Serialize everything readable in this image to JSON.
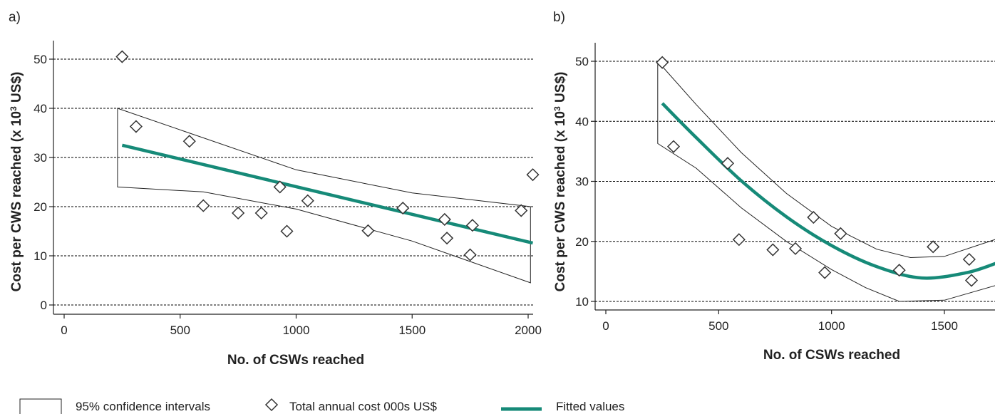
{
  "colors": {
    "fit": "#168a78",
    "grid": "#000000",
    "band": "#222222",
    "marker": "#333333"
  },
  "legend": {
    "band_label": "95% confidence intervals",
    "marker_label": "Total annual cost 000s US$",
    "fit_label": "Fitted values"
  },
  "chart_data": [
    {
      "panel": "a)",
      "type": "scatter",
      "xlabel": "No. of CSWs reached",
      "ylabel": "Cost per CWS reached (x 10³ US$)",
      "xlim": [
        -40,
        2030
      ],
      "ylim": [
        -1,
        52
      ],
      "xticks": [
        0,
        500,
        1000,
        1500,
        2000
      ],
      "yticks": [
        0,
        10,
        20,
        30,
        40,
        50
      ],
      "grid": "horizontal dashed",
      "points": [
        {
          "x": 250,
          "y": 50.5
        },
        {
          "x": 310,
          "y": 36.3
        },
        {
          "x": 540,
          "y": 33.3
        },
        {
          "x": 600,
          "y": 20.2
        },
        {
          "x": 750,
          "y": 18.7
        },
        {
          "x": 850,
          "y": 18.7
        },
        {
          "x": 930,
          "y": 24.0
        },
        {
          "x": 960,
          "y": 15.0
        },
        {
          "x": 1050,
          "y": 21.2
        },
        {
          "x": 1310,
          "y": 15.1
        },
        {
          "x": 1460,
          "y": 19.7
        },
        {
          "x": 1640,
          "y": 17.4
        },
        {
          "x": 1650,
          "y": 13.6
        },
        {
          "x": 1750,
          "y": 10.2
        },
        {
          "x": 1760,
          "y": 16.2
        },
        {
          "x": 1970,
          "y": 19.2
        },
        {
          "x": 2020,
          "y": 26.5
        }
      ],
      "fitted": [
        {
          "x": 250,
          "y": 32.5
        },
        {
          "x": 2020,
          "y": 12.6
        }
      ],
      "ci_upper": [
        {
          "x": 230,
          "y": 40.0
        },
        {
          "x": 1000,
          "y": 27.5
        },
        {
          "x": 1500,
          "y": 22.8
        },
        {
          "x": 2010,
          "y": 20.0
        }
      ],
      "ci_lower": [
        {
          "x": 230,
          "y": 24.0
        },
        {
          "x": 600,
          "y": 23.0
        },
        {
          "x": 1000,
          "y": 19.5
        },
        {
          "x": 1500,
          "y": 13.0
        },
        {
          "x": 2010,
          "y": 4.5
        }
      ]
    },
    {
      "panel": "b)",
      "type": "scatter",
      "xlabel": "No. of CSWs reached",
      "ylabel": "Cost per CWS reached (x 10³ US$)",
      "xlim": [
        -40,
        1740
      ],
      "ylim": [
        9,
        53
      ],
      "xticks": [
        0,
        500,
        1000,
        1500
      ],
      "yticks": [
        10,
        20,
        30,
        40,
        50
      ],
      "grid": "horizontal dashed",
      "points": [
        {
          "x": 250,
          "y": 49.8
        },
        {
          "x": 300,
          "y": 35.8
        },
        {
          "x": 540,
          "y": 33.0
        },
        {
          "x": 590,
          "y": 20.3
        },
        {
          "x": 740,
          "y": 18.6
        },
        {
          "x": 840,
          "y": 18.8
        },
        {
          "x": 920,
          "y": 24.0
        },
        {
          "x": 970,
          "y": 14.8
        },
        {
          "x": 1040,
          "y": 21.3
        },
        {
          "x": 1300,
          "y": 15.2
        },
        {
          "x": 1450,
          "y": 19.1
        },
        {
          "x": 1610,
          "y": 17.0
        },
        {
          "x": 1620,
          "y": 13.5
        }
      ],
      "fitted": [
        {
          "x": 250,
          "y": 43.0
        },
        {
          "x": 400,
          "y": 37.3
        },
        {
          "x": 600,
          "y": 30.1
        },
        {
          "x": 800,
          "y": 24.1
        },
        {
          "x": 1000,
          "y": 19.3
        },
        {
          "x": 1200,
          "y": 15.8
        },
        {
          "x": 1400,
          "y": 13.9
        },
        {
          "x": 1600,
          "y": 14.8
        },
        {
          "x": 1740,
          "y": 16.5
        }
      ],
      "ci_upper": [
        {
          "x": 230,
          "y": 50.0
        },
        {
          "x": 400,
          "y": 42.8
        },
        {
          "x": 600,
          "y": 34.8
        },
        {
          "x": 800,
          "y": 28.0
        },
        {
          "x": 1000,
          "y": 22.5
        },
        {
          "x": 1200,
          "y": 18.7
        },
        {
          "x": 1350,
          "y": 17.3
        },
        {
          "x": 1500,
          "y": 17.5
        },
        {
          "x": 1740,
          "y": 20.5
        }
      ],
      "ci_lower": [
        {
          "x": 230,
          "y": 36.3
        },
        {
          "x": 400,
          "y": 32.2
        },
        {
          "x": 600,
          "y": 25.6
        },
        {
          "x": 800,
          "y": 20.0
        },
        {
          "x": 1000,
          "y": 15.3
        },
        {
          "x": 1150,
          "y": 12.3
        },
        {
          "x": 1300,
          "y": 10.0
        },
        {
          "x": 1500,
          "y": 10.2
        },
        {
          "x": 1740,
          "y": 12.8
        }
      ]
    }
  ]
}
